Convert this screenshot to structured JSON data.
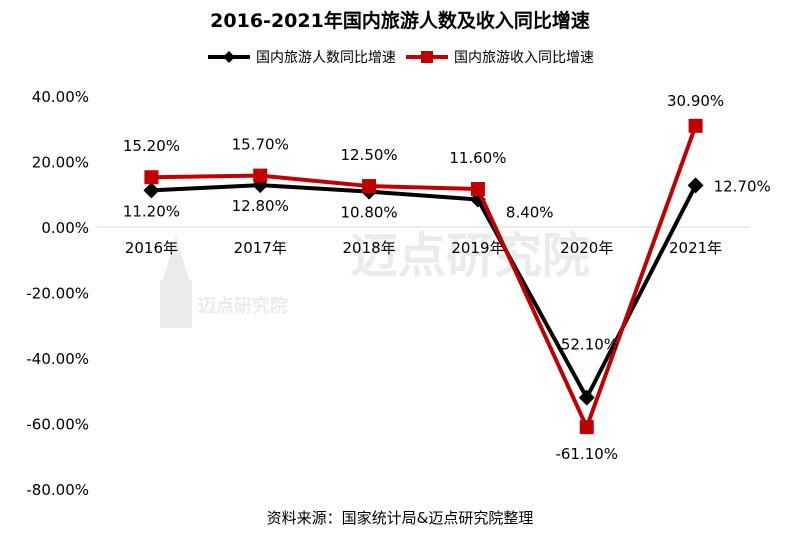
{
  "title": "2016-2021年国内旅游人数及收入同比增速",
  "source": "资料来源：国家统计局&迈点研究院整理",
  "watermark": "迈点研究院",
  "colors": {
    "series1": "#000000",
    "series2": "#c00000"
  },
  "chart_data": {
    "type": "line",
    "categories": [
      "2016年",
      "2017年",
      "2018年",
      "2019年",
      "2020年",
      "2021年"
    ],
    "series": [
      {
        "name": "国内旅游人数同比增速",
        "marker": "diamond",
        "values": [
          11.2,
          12.8,
          10.8,
          8.4,
          -52.1,
          12.7
        ],
        "labels": [
          "11.20%",
          "12.80%",
          "10.80%",
          "8.40%",
          "-52.10%",
          "12.70%"
        ]
      },
      {
        "name": "国内旅游收入同比增速",
        "marker": "square",
        "values": [
          15.2,
          15.7,
          12.5,
          11.6,
          -61.1,
          30.9
        ],
        "labels": [
          "15.20%",
          "15.70%",
          "12.50%",
          "11.60%",
          "-61.10%",
          "30.90%"
        ]
      }
    ],
    "yticks": [
      "40.00%",
      "20.00%",
      "0.00%",
      "-20.00%",
      "-40.00%",
      "-60.00%",
      "-80.00%"
    ],
    "ylim": [
      -80,
      40
    ],
    "legend": "top"
  }
}
